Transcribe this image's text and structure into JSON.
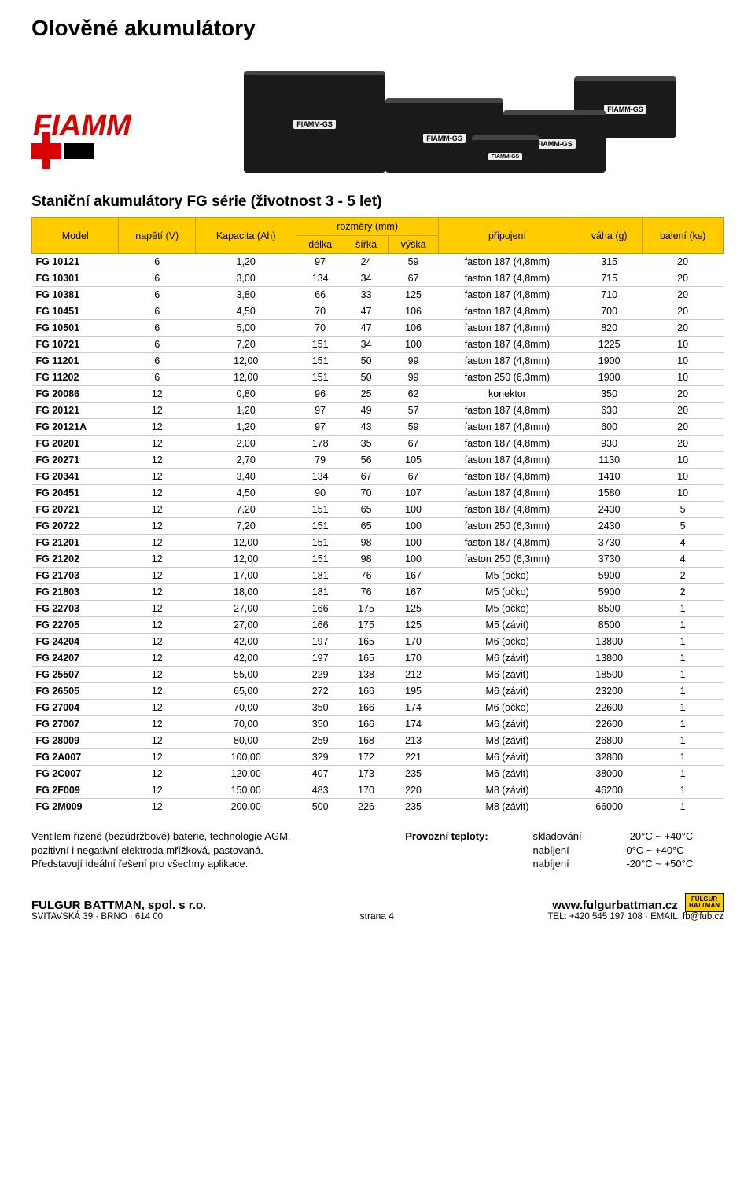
{
  "title": "Olověné akumulátory",
  "section_title": "Staniční akumulátory FG série (životnost 3 - 5 let)",
  "logo_text": "FIAMM",
  "battery_label": "FIAMM-GS",
  "table": {
    "headers": {
      "model": "Model",
      "voltage": "napětí (V)",
      "capacity": "Kapacita (Ah)",
      "dims_group": "rozměry (mm)",
      "length": "délka",
      "width": "šířka",
      "height": "výška",
      "connection": "připojení",
      "weight": "váha (g)",
      "pack": "balení (ks)"
    },
    "rows": [
      {
        "m": "FG 10121",
        "v": "6",
        "c": "1,20",
        "d": "97",
        "s": "24",
        "h": "59",
        "con": "faston 187 (4,8mm)",
        "w": "315",
        "p": "20"
      },
      {
        "m": "FG 10301",
        "v": "6",
        "c": "3,00",
        "d": "134",
        "s": "34",
        "h": "67",
        "con": "faston 187 (4,8mm)",
        "w": "715",
        "p": "20"
      },
      {
        "m": "FG 10381",
        "v": "6",
        "c": "3,80",
        "d": "66",
        "s": "33",
        "h": "125",
        "con": "faston 187 (4,8mm)",
        "w": "710",
        "p": "20"
      },
      {
        "m": "FG 10451",
        "v": "6",
        "c": "4,50",
        "d": "70",
        "s": "47",
        "h": "106",
        "con": "faston 187 (4,8mm)",
        "w": "700",
        "p": "20"
      },
      {
        "m": "FG 10501",
        "v": "6",
        "c": "5,00",
        "d": "70",
        "s": "47",
        "h": "106",
        "con": "faston 187 (4,8mm)",
        "w": "820",
        "p": "20"
      },
      {
        "m": "FG 10721",
        "v": "6",
        "c": "7,20",
        "d": "151",
        "s": "34",
        "h": "100",
        "con": "faston 187 (4,8mm)",
        "w": "1225",
        "p": "10"
      },
      {
        "m": "FG 11201",
        "v": "6",
        "c": "12,00",
        "d": "151",
        "s": "50",
        "h": "99",
        "con": "faston 187 (4,8mm)",
        "w": "1900",
        "p": "10"
      },
      {
        "m": "FG 11202",
        "v": "6",
        "c": "12,00",
        "d": "151",
        "s": "50",
        "h": "99",
        "con": "faston 250 (6,3mm)",
        "w": "1900",
        "p": "10"
      },
      {
        "m": "FG 20086",
        "v": "12",
        "c": "0,80",
        "d": "96",
        "s": "25",
        "h": "62",
        "con": "konektor",
        "w": "350",
        "p": "20"
      },
      {
        "m": "FG 20121",
        "v": "12",
        "c": "1,20",
        "d": "97",
        "s": "49",
        "h": "57",
        "con": "faston 187 (4,8mm)",
        "w": "630",
        "p": "20"
      },
      {
        "m": "FG 20121A",
        "v": "12",
        "c": "1,20",
        "d": "97",
        "s": "43",
        "h": "59",
        "con": "faston 187 (4,8mm)",
        "w": "600",
        "p": "20"
      },
      {
        "m": "FG 20201",
        "v": "12",
        "c": "2,00",
        "d": "178",
        "s": "35",
        "h": "67",
        "con": "faston 187 (4,8mm)",
        "w": "930",
        "p": "20"
      },
      {
        "m": "FG 20271",
        "v": "12",
        "c": "2,70",
        "d": "79",
        "s": "56",
        "h": "105",
        "con": "faston 187 (4,8mm)",
        "w": "1130",
        "p": "10"
      },
      {
        "m": "FG 20341",
        "v": "12",
        "c": "3,40",
        "d": "134",
        "s": "67",
        "h": "67",
        "con": "faston 187 (4,8mm)",
        "w": "1410",
        "p": "10"
      },
      {
        "m": "FG 20451",
        "v": "12",
        "c": "4,50",
        "d": "90",
        "s": "70",
        "h": "107",
        "con": "faston 187 (4,8mm)",
        "w": "1580",
        "p": "10"
      },
      {
        "m": "FG 20721",
        "v": "12",
        "c": "7,20",
        "d": "151",
        "s": "65",
        "h": "100",
        "con": "faston 187 (4,8mm)",
        "w": "2430",
        "p": "5"
      },
      {
        "m": "FG 20722",
        "v": "12",
        "c": "7,20",
        "d": "151",
        "s": "65",
        "h": "100",
        "con": "faston 250 (6,3mm)",
        "w": "2430",
        "p": "5"
      },
      {
        "m": "FG 21201",
        "v": "12",
        "c": "12,00",
        "d": "151",
        "s": "98",
        "h": "100",
        "con": "faston 187 (4,8mm)",
        "w": "3730",
        "p": "4"
      },
      {
        "m": "FG 21202",
        "v": "12",
        "c": "12,00",
        "d": "151",
        "s": "98",
        "h": "100",
        "con": "faston 250 (6,3mm)",
        "w": "3730",
        "p": "4"
      },
      {
        "m": "FG 21703",
        "v": "12",
        "c": "17,00",
        "d": "181",
        "s": "76",
        "h": "167",
        "con": "M5 (očko)",
        "w": "5900",
        "p": "2"
      },
      {
        "m": "FG 21803",
        "v": "12",
        "c": "18,00",
        "d": "181",
        "s": "76",
        "h": "167",
        "con": "M5 (očko)",
        "w": "5900",
        "p": "2"
      },
      {
        "m": "FG 22703",
        "v": "12",
        "c": "27,00",
        "d": "166",
        "s": "175",
        "h": "125",
        "con": "M5 (očko)",
        "w": "8500",
        "p": "1"
      },
      {
        "m": "FG 22705",
        "v": "12",
        "c": "27,00",
        "d": "166",
        "s": "175",
        "h": "125",
        "con": "M5 (závit)",
        "w": "8500",
        "p": "1"
      },
      {
        "m": "FG 24204",
        "v": "12",
        "c": "42,00",
        "d": "197",
        "s": "165",
        "h": "170",
        "con": "M6 (očko)",
        "w": "13800",
        "p": "1"
      },
      {
        "m": "FG 24207",
        "v": "12",
        "c": "42,00",
        "d": "197",
        "s": "165",
        "h": "170",
        "con": "M6 (závit)",
        "w": "13800",
        "p": "1"
      },
      {
        "m": "FG 25507",
        "v": "12",
        "c": "55,00",
        "d": "229",
        "s": "138",
        "h": "212",
        "con": "M6 (závit)",
        "w": "18500",
        "p": "1"
      },
      {
        "m": "FG 26505",
        "v": "12",
        "c": "65,00",
        "d": "272",
        "s": "166",
        "h": "195",
        "con": "M6 (závit)",
        "w": "23200",
        "p": "1"
      },
      {
        "m": "FG 27004",
        "v": "12",
        "c": "70,00",
        "d": "350",
        "s": "166",
        "h": "174",
        "con": "M6 (očko)",
        "w": "22600",
        "p": "1"
      },
      {
        "m": "FG 27007",
        "v": "12",
        "c": "70,00",
        "d": "350",
        "s": "166",
        "h": "174",
        "con": "M6 (závit)",
        "w": "22600",
        "p": "1"
      },
      {
        "m": "FG 28009",
        "v": "12",
        "c": "80,00",
        "d": "259",
        "s": "168",
        "h": "213",
        "con": "M8 (závit)",
        "w": "26800",
        "p": "1"
      },
      {
        "m": "FG 2A007",
        "v": "12",
        "c": "100,00",
        "d": "329",
        "s": "172",
        "h": "221",
        "con": "M6 (závit)",
        "w": "32800",
        "p": "1"
      },
      {
        "m": "FG 2C007",
        "v": "12",
        "c": "120,00",
        "d": "407",
        "s": "173",
        "h": "235",
        "con": "M6 (závit)",
        "w": "38000",
        "p": "1"
      },
      {
        "m": "FG 2F009",
        "v": "12",
        "c": "150,00",
        "d": "483",
        "s": "170",
        "h": "220",
        "con": "M8 (závit)",
        "w": "46200",
        "p": "1"
      },
      {
        "m": "FG 2M009",
        "v": "12",
        "c": "200,00",
        "d": "500",
        "s": "226",
        "h": "235",
        "con": "M8 (závit)",
        "w": "66000",
        "p": "1"
      }
    ]
  },
  "desc_left": [
    "Ventilem řízené (bezúdržbové) baterie, technologie AGM,",
    "pozitivní i negativní elektroda mřížková, pastovaná.",
    "Představují ideální řešení pro všechny aplikace."
  ],
  "desc_right_label": "Provozní teploty:",
  "temps": [
    {
      "k": "skladování",
      "v": "-20°C ~ +40°C"
    },
    {
      "k": "nabíjení",
      "v": "0°C ~ +40°C"
    },
    {
      "k": "nabíjení",
      "v": "-20°C ~ +50°C"
    }
  ],
  "footer": {
    "company": "FULGUR BATTMAN, spol. s r.o.",
    "address": "SVITAVSKÁ 39 · BRNO · 614 00",
    "page": "strana 4",
    "www": "www.fulgurbattman.cz",
    "contact": "TEL: +420 545 197 108 · EMAIL: fb@fub.cz",
    "logo_top": "FULGUR",
    "logo_bot": "BATTMAN"
  },
  "colors": {
    "header_bg": "#ffcc00",
    "header_border": "#bfa000",
    "row_border": "#cccccc",
    "logo_red": "#d90000"
  }
}
